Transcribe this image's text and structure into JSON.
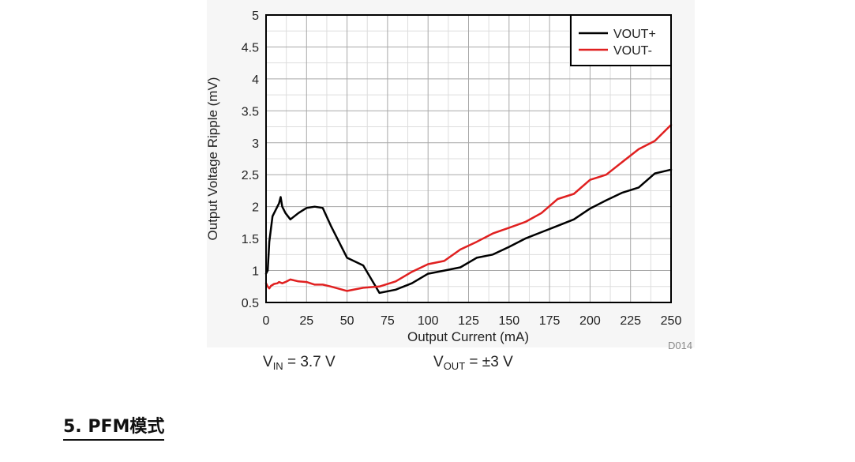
{
  "chart_data": {
    "type": "line",
    "figure_id": "D014",
    "xlabel": "Output Current (mA)",
    "ylabel": "Output Voltage Ripple (mV)",
    "xlim": [
      0,
      250
    ],
    "ylim": [
      0.5,
      5
    ],
    "xticks": [
      0,
      25,
      50,
      75,
      100,
      125,
      150,
      175,
      200,
      225,
      250
    ],
    "yticks": [
      0.5,
      1,
      1.5,
      2,
      2.5,
      3,
      3.5,
      4,
      4.5,
      5
    ],
    "xticklabels": [
      "0",
      "25",
      "50",
      "75",
      "100",
      "125",
      "150",
      "175",
      "200",
      "225",
      "250"
    ],
    "yticklabels": [
      "0.5",
      "1",
      "1.5",
      "2",
      "2.5",
      "3",
      "3.5",
      "4",
      "4.5",
      "5"
    ],
    "grid": true,
    "legend_position": "top-right",
    "series": [
      {
        "name": "VOUT+",
        "color": "#000000",
        "x": [
          0,
          1,
          2,
          4,
          6,
          8,
          9,
          10,
          12,
          15,
          20,
          25,
          30,
          35,
          40,
          50,
          60,
          70,
          80,
          90,
          100,
          110,
          120,
          130,
          140,
          150,
          160,
          170,
          180,
          190,
          200,
          210,
          220,
          230,
          240,
          250
        ],
        "y": [
          0.95,
          1.0,
          1.45,
          1.85,
          1.95,
          2.05,
          2.15,
          2.0,
          1.9,
          1.8,
          1.9,
          1.98,
          2.0,
          1.98,
          1.7,
          1.2,
          1.08,
          0.65,
          0.7,
          0.8,
          0.95,
          1.0,
          1.05,
          1.2,
          1.25,
          1.37,
          1.5,
          1.6,
          1.7,
          1.8,
          1.97,
          2.1,
          2.22,
          2.3,
          2.52,
          2.58
        ]
      },
      {
        "name": "VOUT-",
        "color": "#e02020",
        "x": [
          0,
          1,
          2,
          3,
          5,
          7,
          8,
          10,
          12,
          15,
          20,
          25,
          30,
          35,
          40,
          50,
          60,
          70,
          80,
          90,
          100,
          110,
          120,
          130,
          140,
          150,
          160,
          170,
          180,
          190,
          200,
          210,
          220,
          230,
          240,
          250
        ],
        "y": [
          0.8,
          0.75,
          0.72,
          0.76,
          0.79,
          0.8,
          0.82,
          0.8,
          0.82,
          0.86,
          0.83,
          0.82,
          0.78,
          0.78,
          0.75,
          0.68,
          0.73,
          0.75,
          0.83,
          0.98,
          1.1,
          1.15,
          1.33,
          1.45,
          1.58,
          1.67,
          1.76,
          1.9,
          2.12,
          2.2,
          2.42,
          2.5,
          2.7,
          2.9,
          3.03,
          3.28
        ]
      }
    ]
  },
  "conditions": {
    "vin_main": "V",
    "vin_sub": "IN",
    "vin_value": " = 3.7 V",
    "vout_main": "V",
    "vout_sub": "OUT",
    "vout_value": " = ±3 V"
  },
  "section": {
    "heading": "5. PFM模式"
  }
}
